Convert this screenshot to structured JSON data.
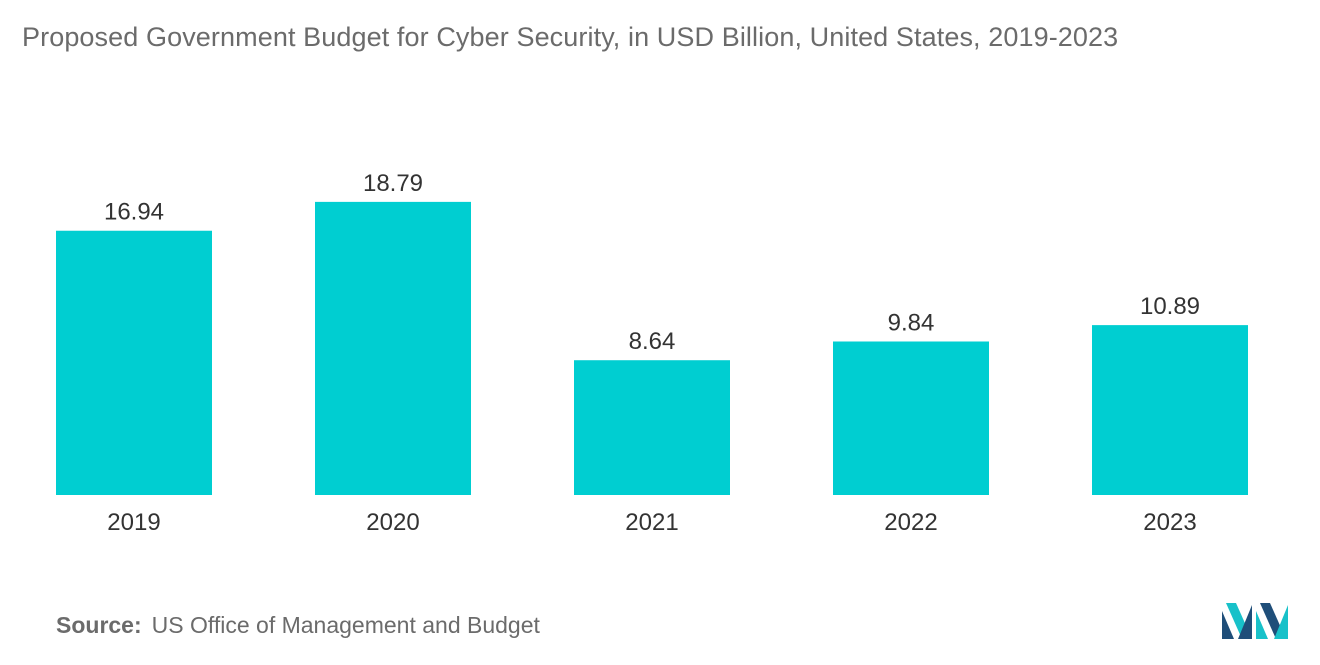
{
  "header": {
    "title": "Proposed Government Budget for Cyber Security, in USD Billion, United States, 2019-2023"
  },
  "footer": {
    "source_label": "Source:",
    "source_text": "US Office of Management and Budget",
    "logo_icon": "mordor-intelligence-logo-icon"
  },
  "colors": {
    "bar": "#00CED1",
    "text": "#6b6b6b",
    "value_label": "#333333",
    "logo_dark": "#1f4e79",
    "logo_light": "#18c1c9"
  },
  "chart_data": {
    "type": "bar",
    "title": "Proposed Government Budget for Cyber Security, in USD Billion, United States, 2019-2023",
    "xlabel": "",
    "ylabel": "",
    "categories": [
      "2019",
      "2020",
      "2021",
      "2022",
      "2023"
    ],
    "values": [
      16.94,
      18.79,
      8.64,
      9.84,
      10.89
    ],
    "ylim": [
      0,
      20
    ],
    "grid": false,
    "legend": "none",
    "data_labels": true
  }
}
